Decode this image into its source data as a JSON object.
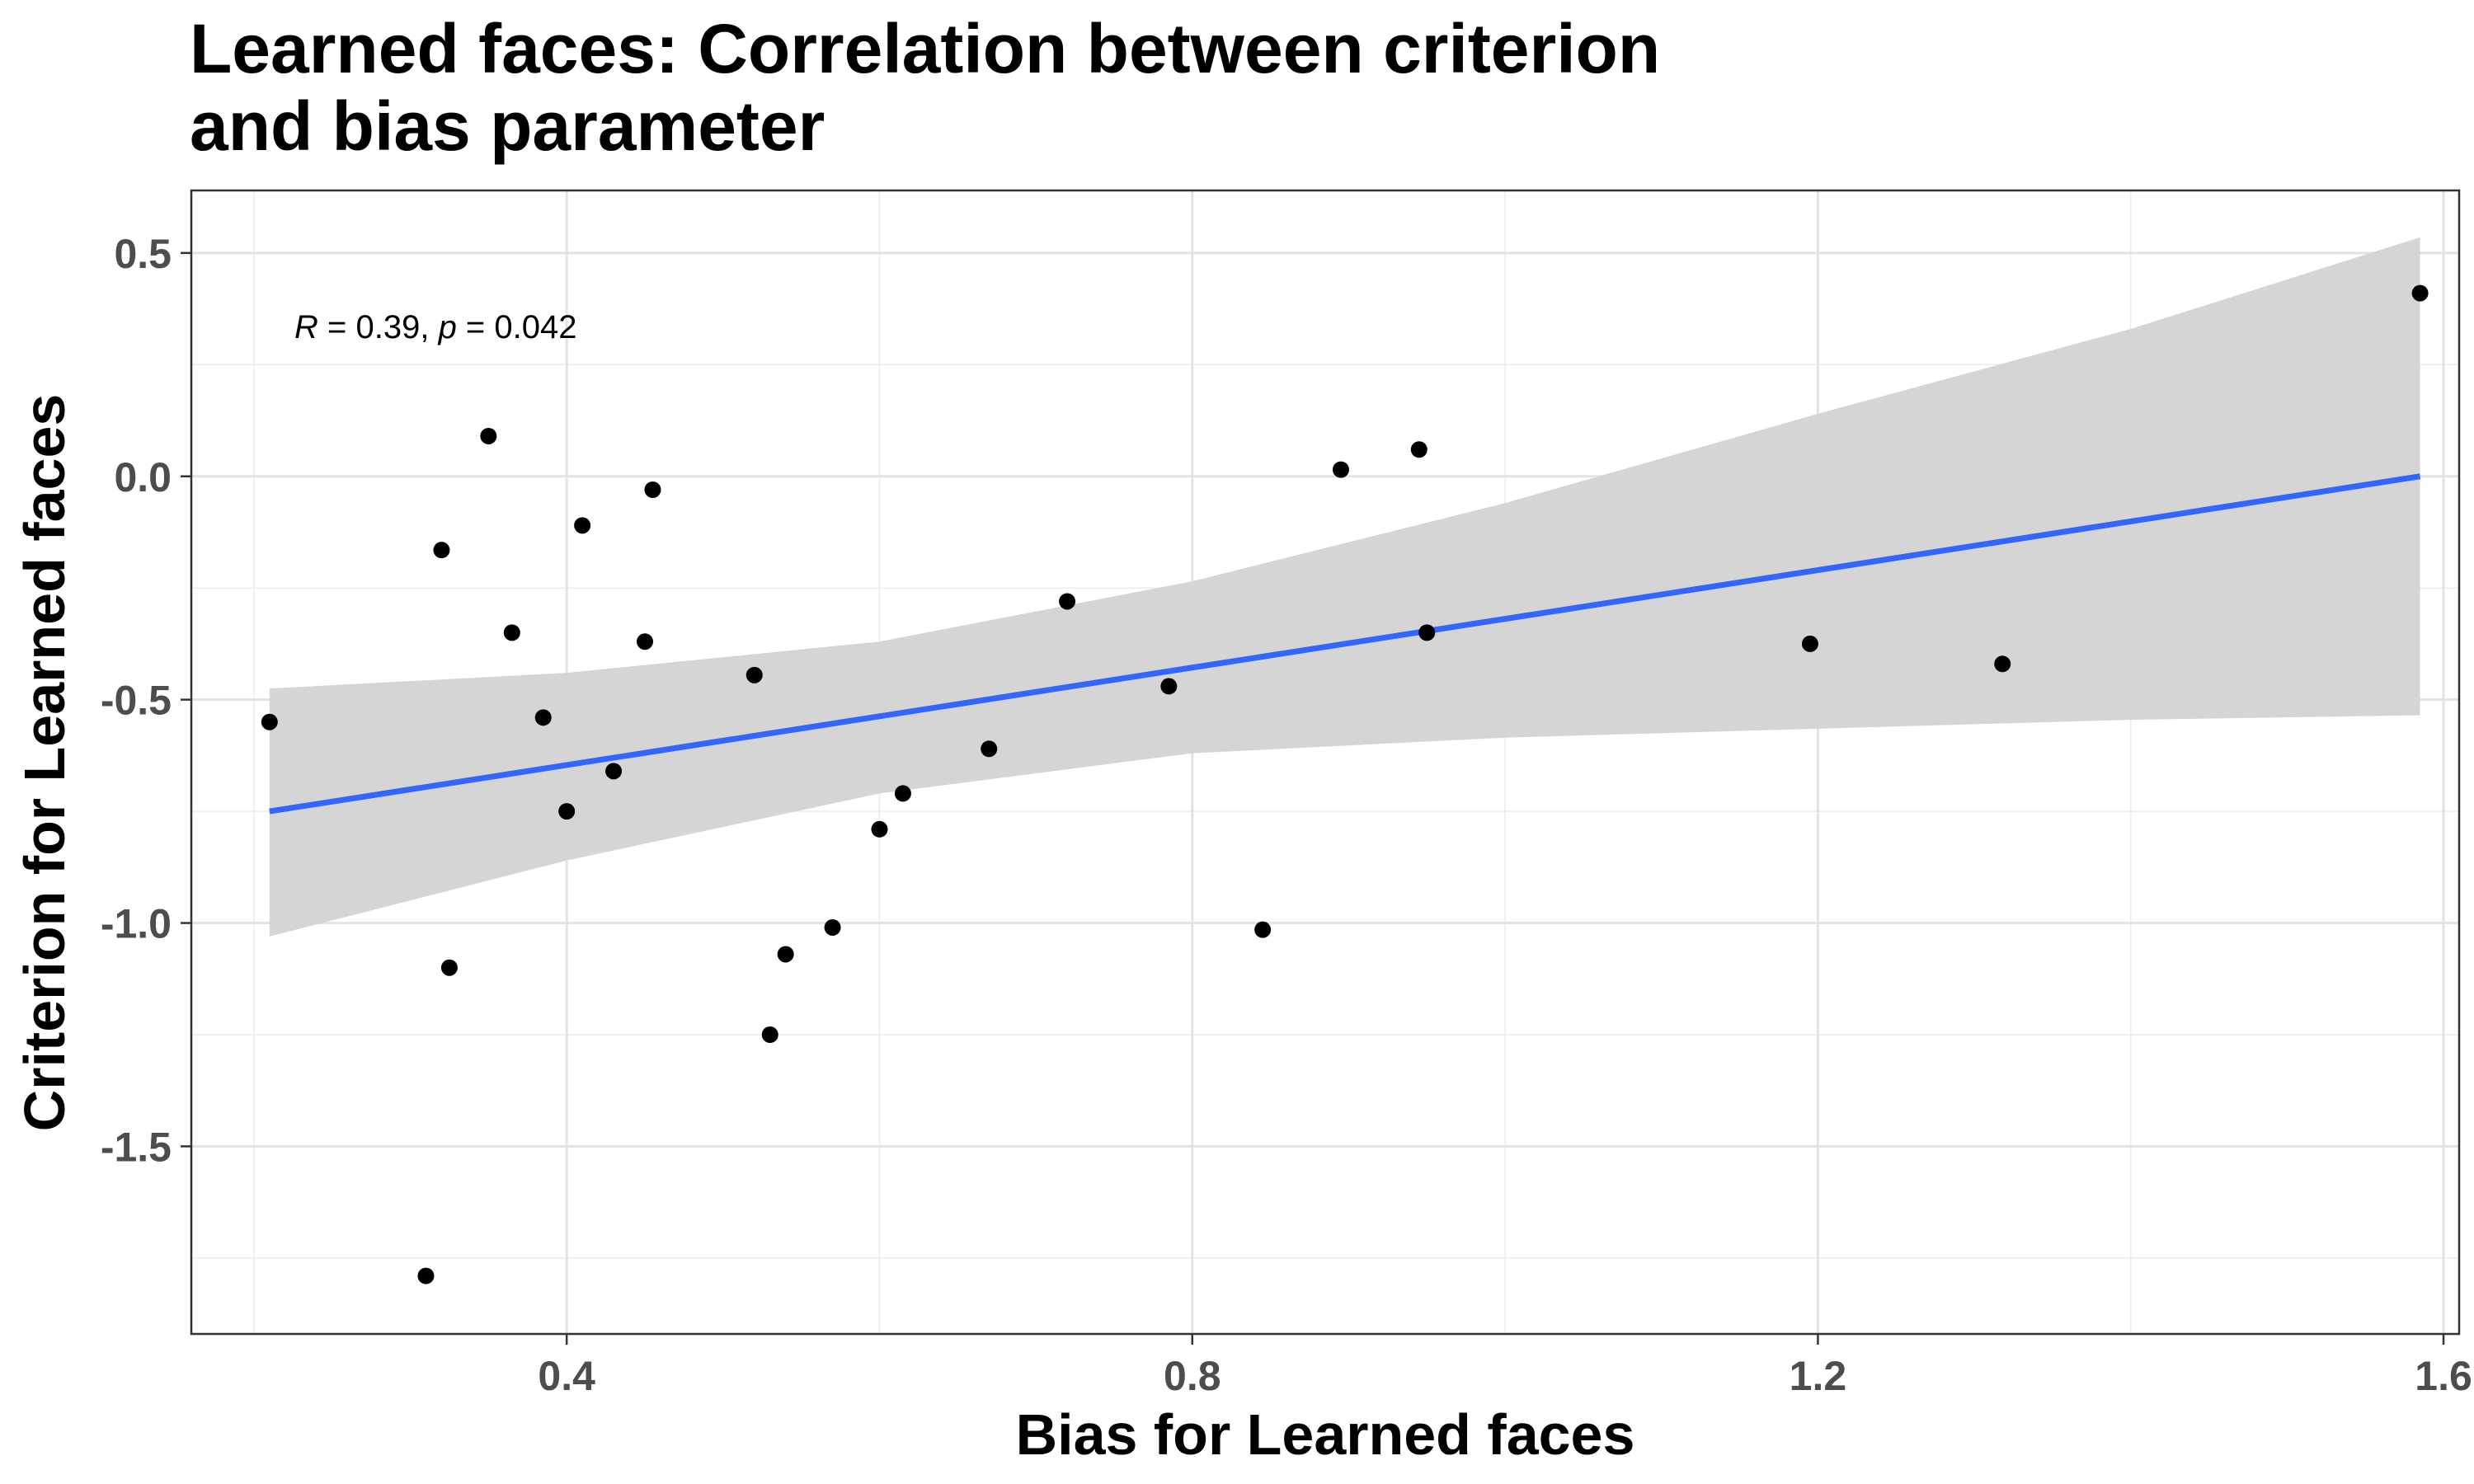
{
  "chart_data": {
    "type": "scatter",
    "title_lines": [
      "Learned faces: Correlation between criterion",
      "and bias parameter"
    ],
    "xlabel": "Bias for Learned faces",
    "ylabel": "Criterion for Learned faces",
    "xlim": [
      0.16,
      1.61
    ],
    "ylim": [
      -1.92,
      0.64
    ],
    "x_ticks": [
      0.4,
      0.8,
      1.2,
      1.6
    ],
    "x_tick_labels": [
      "0.4",
      "0.8",
      "1.2",
      "1.6"
    ],
    "y_ticks": [
      0.5,
      0.0,
      -0.5,
      -1.0,
      -1.5
    ],
    "y_tick_labels": [
      "0.5",
      "0.0",
      "-0.5",
      "-1.0",
      "-1.5"
    ],
    "x_minor_ticks": [
      0.2,
      0.6,
      1.0,
      1.4
    ],
    "y_minor_ticks": [
      0.25,
      -0.25,
      -0.75,
      -1.25,
      -1.75
    ],
    "grid": true,
    "points": [
      {
        "x": 0.21,
        "y": -0.55
      },
      {
        "x": 0.31,
        "y": -1.79
      },
      {
        "x": 0.32,
        "y": -0.165
      },
      {
        "x": 0.325,
        "y": -1.1
      },
      {
        "x": 0.35,
        "y": 0.09
      },
      {
        "x": 0.365,
        "y": -0.35
      },
      {
        "x": 0.385,
        "y": -0.54
      },
      {
        "x": 0.4,
        "y": -0.75
      },
      {
        "x": 0.41,
        "y": -0.11
      },
      {
        "x": 0.43,
        "y": -0.66
      },
      {
        "x": 0.45,
        "y": -0.37
      },
      {
        "x": 0.455,
        "y": -0.03
      },
      {
        "x": 0.52,
        "y": -0.445
      },
      {
        "x": 0.53,
        "y": -1.25
      },
      {
        "x": 0.54,
        "y": -1.07
      },
      {
        "x": 0.57,
        "y": -1.01
      },
      {
        "x": 0.6,
        "y": -0.79
      },
      {
        "x": 0.615,
        "y": -0.71
      },
      {
        "x": 0.67,
        "y": -0.61
      },
      {
        "x": 0.72,
        "y": -0.28
      },
      {
        "x": 0.785,
        "y": -0.47
      },
      {
        "x": 0.845,
        "y": -1.015
      },
      {
        "x": 0.895,
        "y": 0.015
      },
      {
        "x": 0.945,
        "y": 0.06
      },
      {
        "x": 0.95,
        "y": -0.35
      },
      {
        "x": 1.195,
        "y": -0.375
      },
      {
        "x": 1.318,
        "y": -0.42
      },
      {
        "x": 1.585,
        "y": 0.41
      }
    ],
    "regression_line": {
      "x": [
        0.21,
        1.585
      ],
      "y": [
        -0.75,
        0.0
      ],
      "color": "#3366FF"
    },
    "confidence_band": {
      "upper": [
        {
          "x": 0.21,
          "y": -0.475
        },
        {
          "x": 0.4,
          "y": -0.44
        },
        {
          "x": 0.6,
          "y": -0.37
        },
        {
          "x": 0.8,
          "y": -0.235
        },
        {
          "x": 1.0,
          "y": -0.06
        },
        {
          "x": 1.2,
          "y": 0.14
        },
        {
          "x": 1.4,
          "y": 0.33
        },
        {
          "x": 1.585,
          "y": 0.535
        }
      ],
      "lower": [
        {
          "x": 0.21,
          "y": -1.03
        },
        {
          "x": 0.4,
          "y": -0.86
        },
        {
          "x": 0.6,
          "y": -0.71
        },
        {
          "x": 0.8,
          "y": -0.62
        },
        {
          "x": 1.0,
          "y": -0.585
        },
        {
          "x": 1.2,
          "y": -0.565
        },
        {
          "x": 1.4,
          "y": -0.545
        },
        {
          "x": 1.585,
          "y": -0.535
        }
      ],
      "color": "#d5d5d5"
    },
    "annotation": {
      "r_symbol": "R",
      "eq1": " = 0.39, ",
      "p_symbol": "p",
      "eq2": " = 0.042"
    }
  }
}
